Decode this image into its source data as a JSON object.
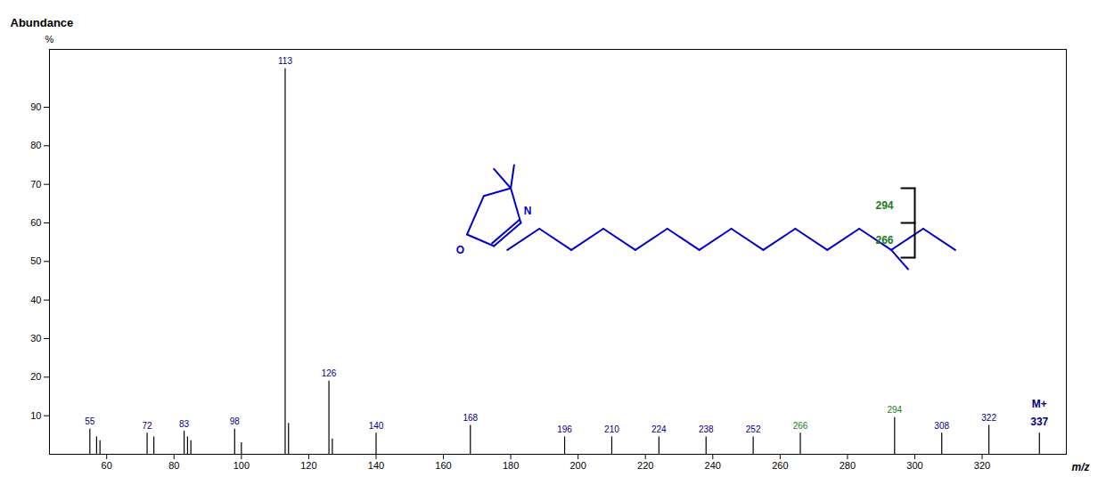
{
  "chart_data": {
    "type": "spectrum",
    "xlabel": "m/z",
    "ylabel": "Abundance",
    "y_unit": "%",
    "x": [
      55,
      57,
      58,
      72,
      74,
      83,
      84,
      85,
      98,
      100,
      113,
      114,
      126,
      127,
      140,
      168,
      196,
      210,
      224,
      238,
      252,
      266,
      294,
      308,
      322,
      337
    ],
    "values": [
      6.5,
      4.5,
      3.5,
      5.5,
      4.5,
      6.0,
      4.5,
      3.5,
      6.5,
      3.0,
      100,
      8.0,
      19,
      4.0,
      5.5,
      7.5,
      4.5,
      4.5,
      4.5,
      4.5,
      4.5,
      5.5,
      9.5,
      5.5,
      7.5,
      5.5
    ],
    "peak_labels": [
      "55",
      null,
      null,
      "72",
      null,
      "83",
      null,
      null,
      "98",
      null,
      "113",
      null,
      "126",
      null,
      "140",
      "168",
      "196",
      "210",
      "224",
      "238",
      "252",
      "266",
      "294",
      "308",
      "322",
      null
    ],
    "label_colors": [
      "#000080",
      null,
      null,
      "#000080",
      null,
      "#000080",
      null,
      null,
      "#000080",
      null,
      "#000080",
      null,
      "#000080",
      null,
      "#000080",
      "#000080",
      "#000080",
      "#000080",
      "#000080",
      "#000080",
      "#000080",
      "#1a7a1a",
      "#1a7a1a",
      "#000080",
      "#000080",
      null
    ],
    "color": "#000000",
    "xlim": [
      43,
      345
    ],
    "ylim": [
      0,
      105
    ],
    "xticks": [
      60,
      80,
      100,
      120,
      140,
      160,
      180,
      200,
      220,
      240,
      260,
      280,
      300,
      320
    ],
    "yticks": [
      10,
      20,
      30,
      40,
      50,
      60,
      70,
      80,
      90
    ],
    "grid": false,
    "annotations": [
      {
        "text": "337",
        "x": 337,
        "y": 8.5,
        "color": "#000080"
      },
      {
        "text": "M+",
        "x": 337,
        "y": 13,
        "color": "#000080"
      },
      {
        "text": "N",
        "x": 185,
        "y": 63,
        "color": "#0000cc"
      },
      {
        "text": "O",
        "x": 165,
        "y": 53,
        "color": "#0000cc"
      },
      {
        "text": "294",
        "x": 291,
        "y": 64.5,
        "color": "#1a7a1a"
      },
      {
        "text": "266",
        "x": 291,
        "y": 55.5,
        "color": "#1a7a1a"
      }
    ],
    "segments": [
      {
        "x1": 167,
        "y1": 57,
        "x2": 175,
        "y2": 54,
        "color": "#0000cc"
      },
      {
        "x1": 175,
        "y1": 54,
        "x2": 183,
        "y2": 60,
        "color": "#0000cc"
      },
      {
        "x1": 183,
        "y1": 60,
        "x2": 180,
        "y2": 69,
        "color": "#0000cc"
      },
      {
        "x1": 180,
        "y1": 69,
        "x2": 172,
        "y2": 67,
        "color": "#0000cc"
      },
      {
        "x1": 172,
        "y1": 67,
        "x2": 167,
        "y2": 57,
        "color": "#0000cc"
      },
      {
        "x1": 174.46,
        "y1": 54.72,
        "x2": 182.46,
        "y2": 60.72,
        "color": "#0000cc"
      },
      {
        "x1": 180,
        "y1": 69,
        "x2": 175,
        "y2": 74,
        "color": "#0000cc"
      },
      {
        "x1": 180,
        "y1": 69,
        "x2": 181,
        "y2": 75,
        "color": "#0000cc"
      },
      {
        "x1": 179,
        "y1": 53,
        "x2": 188.5,
        "y2": 58.5,
        "color": "#0000cc"
      },
      {
        "x1": 188.5,
        "y1": 58.5,
        "x2": 198,
        "y2": 53,
        "color": "#0000cc"
      },
      {
        "x1": 198,
        "y1": 53,
        "x2": 207.5,
        "y2": 58.5,
        "color": "#0000cc"
      },
      {
        "x1": 207.5,
        "y1": 58.5,
        "x2": 217,
        "y2": 53,
        "color": "#0000cc"
      },
      {
        "x1": 217,
        "y1": 53,
        "x2": 226.5,
        "y2": 58.5,
        "color": "#0000cc"
      },
      {
        "x1": 226.5,
        "y1": 58.5,
        "x2": 236,
        "y2": 53,
        "color": "#0000cc"
      },
      {
        "x1": 236,
        "y1": 53,
        "x2": 245.5,
        "y2": 58.5,
        "color": "#0000cc"
      },
      {
        "x1": 245.5,
        "y1": 58.5,
        "x2": 255,
        "y2": 53,
        "color": "#0000cc"
      },
      {
        "x1": 255,
        "y1": 53,
        "x2": 264.5,
        "y2": 58.5,
        "color": "#0000cc"
      },
      {
        "x1": 264.5,
        "y1": 58.5,
        "x2": 274,
        "y2": 53,
        "color": "#0000cc"
      },
      {
        "x1": 274,
        "y1": 53,
        "x2": 283.5,
        "y2": 58.5,
        "color": "#0000cc"
      },
      {
        "x1": 283.5,
        "y1": 58.5,
        "x2": 293,
        "y2": 53,
        "color": "#0000cc"
      },
      {
        "x1": 293,
        "y1": 53,
        "x2": 302.5,
        "y2": 58.5,
        "color": "#0000cc"
      },
      {
        "x1": 302.5,
        "y1": 58.5,
        "x2": 312,
        "y2": 53,
        "color": "#0000cc"
      },
      {
        "x1": 293,
        "y1": 53,
        "x2": 298,
        "y2": 48,
        "color": "#0000cc"
      },
      {
        "x1": 300,
        "y1": 69,
        "x2": 300,
        "y2": 60,
        "color": "#000000"
      },
      {
        "x1": 300,
        "y1": 69,
        "x2": 296,
        "y2": 69,
        "color": "#000000"
      },
      {
        "x1": 300,
        "y1": 60,
        "x2": 296,
        "y2": 60,
        "color": "#000000"
      },
      {
        "x1": 300,
        "y1": 60,
        "x2": 300,
        "y2": 51,
        "color": "#000000"
      },
      {
        "x1": 300,
        "y1": 51,
        "x2": 296,
        "y2": 51,
        "color": "#000000"
      }
    ]
  }
}
